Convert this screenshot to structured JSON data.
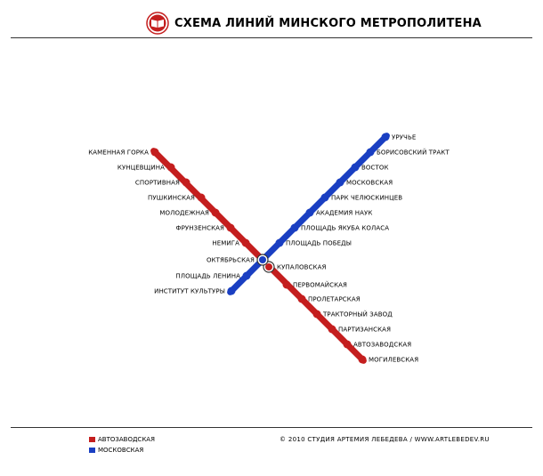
{
  "header": {
    "title": "СХЕМА ЛИНИЙ МИНСКОГО МЕТРОПОЛИТЕНА",
    "logo_icon": "book-logo-icon"
  },
  "lines": [
    {
      "id": "red",
      "name": "АВТОЗАВОДСКАЯ",
      "color": "#c41e1e",
      "stations": [
        "КАМЕННАЯ ГОРКА",
        "КУНЦЕВЩИНА",
        "СПОРТИВНАЯ",
        "ПУШКИНСКАЯ",
        "МОЛОДЕЖНАЯ",
        "ФРУНЗЕНСКАЯ",
        "НЕМИГА",
        "КУПАЛОВСКАЯ",
        "ПЕРВОМАЙСКАЯ",
        "ПРОЛЕТАРСКАЯ",
        "ТРАКТОРНЫЙ ЗАВОД",
        "ПАРТИЗАНСКАЯ",
        "АВТОЗАВОДСКАЯ",
        "МОГИЛЕВСКАЯ"
      ]
    },
    {
      "id": "blue",
      "name": "МОСКОВСКАЯ",
      "color": "#1a3fc2",
      "stations": [
        "УРУЧЬЕ",
        "БОРИСОВСКИЙ ТРАКТ",
        "ВОСТОК",
        "МОСКОВСКАЯ",
        "ПАРК ЧЕЛЮСКИНЦЕВ",
        "АКАДЕМИЯ НАУК",
        "ПЛОЩАДЬ ЯКУБА КОЛАСА",
        "ПЛОЩАДЬ ПОБЕДЫ",
        "ОКТЯБРЬСКАЯ",
        "ПЛОЩАДЬ ЛЕНИНА",
        "ИНСТИТУТ КУЛЬТУРЫ"
      ]
    }
  ],
  "transfer": [
    "ОКТЯБРЬСКАЯ",
    "КУПАЛОВСКАЯ"
  ],
  "footer": {
    "legend": [
      {
        "label": "АВТОЗАВОДСКАЯ",
        "color": "#c41e1e"
      },
      {
        "label": "МОСКОВСКАЯ",
        "color": "#1a3fc2"
      }
    ],
    "copyright": "© 2010  СТУДИЯ АРТЕМИЯ ЛЕБЕДЕВА  /  WWW.ARTLEBEDEV.RU"
  }
}
